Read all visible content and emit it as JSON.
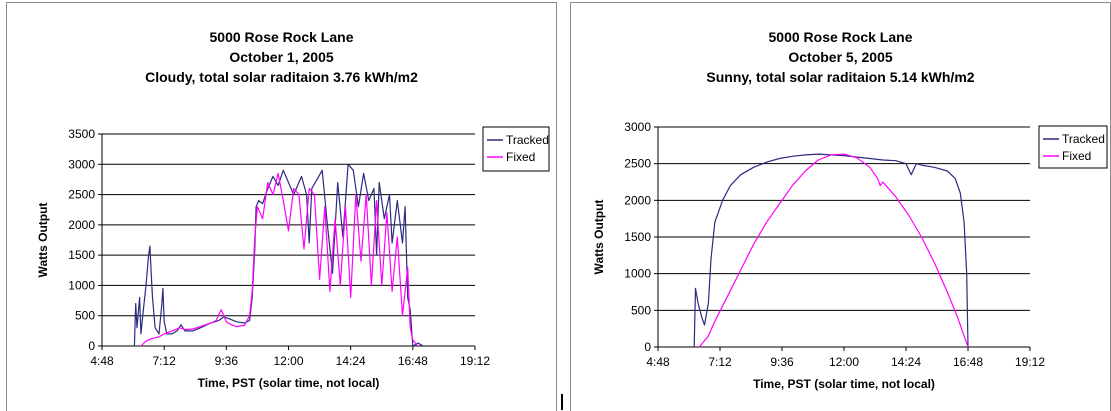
{
  "chart_data": [
    {
      "type": "line",
      "title_lines": [
        "5000 Rose Rock Lane",
        "October 1, 2005",
        "Cloudy, total solar raditaion 3.76 kWh/m2"
      ],
      "xlabel": "Time, PST (solar time, not local)",
      "ylabel": "Watts Output",
      "x_ticks": [
        "4:48",
        "7:12",
        "9:36",
        "12:00",
        "14:24",
        "16:48",
        "19:12"
      ],
      "xlim_hours": [
        4.8,
        19.2
      ],
      "y_ticks": [
        0,
        500,
        1000,
        1500,
        2000,
        2500,
        3000,
        3500
      ],
      "ylim": [
        0,
        3500
      ],
      "grid": true,
      "legend_position": "right",
      "series": [
        {
          "name": "Tracked",
          "color": "#2b2b80",
          "points": [
            [
              6.05,
              0
            ],
            [
              6.1,
              700
            ],
            [
              6.15,
              300
            ],
            [
              6.25,
              800
            ],
            [
              6.3,
              200
            ],
            [
              6.4,
              600
            ],
            [
              6.5,
              1000
            ],
            [
              6.6,
              1500
            ],
            [
              6.65,
              1650
            ],
            [
              6.7,
              1200
            ],
            [
              6.75,
              800
            ],
            [
              6.85,
              300
            ],
            [
              7.0,
              200
            ],
            [
              7.1,
              650
            ],
            [
              7.15,
              950
            ],
            [
              7.2,
              400
            ],
            [
              7.3,
              200
            ],
            [
              7.5,
              200
            ],
            [
              7.7,
              250
            ],
            [
              7.85,
              350
            ],
            [
              8.0,
              250
            ],
            [
              8.3,
              250
            ],
            [
              8.6,
              300
            ],
            [
              9.0,
              380
            ],
            [
              9.3,
              420
            ],
            [
              9.5,
              480
            ],
            [
              9.7,
              450
            ],
            [
              10.0,
              400
            ],
            [
              10.3,
              380
            ],
            [
              10.5,
              420
            ],
            [
              10.6,
              800
            ],
            [
              10.7,
              1600
            ],
            [
              10.75,
              2300
            ],
            [
              10.85,
              2400
            ],
            [
              11.0,
              2350
            ],
            [
              11.2,
              2600
            ],
            [
              11.4,
              2800
            ],
            [
              11.6,
              2650
            ],
            [
              11.8,
              2900
            ],
            [
              12.0,
              2700
            ],
            [
              12.2,
              2500
            ],
            [
              12.5,
              2800
            ],
            [
              12.7,
              2500
            ],
            [
              12.8,
              1700
            ],
            [
              12.9,
              2600
            ],
            [
              13.1,
              2750
            ],
            [
              13.3,
              2900
            ],
            [
              13.5,
              2000
            ],
            [
              13.7,
              1200
            ],
            [
              13.9,
              2700
            ],
            [
              14.1,
              1800
            ],
            [
              14.3,
              3000
            ],
            [
              14.5,
              2900
            ],
            [
              14.7,
              2300
            ],
            [
              14.9,
              2850
            ],
            [
              15.1,
              2400
            ],
            [
              15.3,
              2600
            ],
            [
              15.4,
              1500
            ],
            [
              15.5,
              2700
            ],
            [
              15.7,
              2100
            ],
            [
              15.9,
              2500
            ],
            [
              16.0,
              1700
            ],
            [
              16.2,
              2400
            ],
            [
              16.4,
              1700
            ],
            [
              16.5,
              2300
            ],
            [
              16.6,
              800
            ],
            [
              16.7,
              600
            ],
            [
              16.8,
              0
            ],
            [
              17.0,
              50
            ],
            [
              17.2,
              0
            ]
          ]
        },
        {
          "name": "Fixed",
          "color": "#ff00ff",
          "points": [
            [
              6.3,
              0
            ],
            [
              6.5,
              80
            ],
            [
              6.7,
              120
            ],
            [
              7.0,
              150
            ],
            [
              7.2,
              200
            ],
            [
              7.5,
              250
            ],
            [
              7.8,
              300
            ],
            [
              8.0,
              270
            ],
            [
              8.3,
              280
            ],
            [
              8.6,
              320
            ],
            [
              9.0,
              380
            ],
            [
              9.2,
              420
            ],
            [
              9.4,
              600
            ],
            [
              9.6,
              400
            ],
            [
              9.8,
              350
            ],
            [
              10.0,
              320
            ],
            [
              10.3,
              340
            ],
            [
              10.5,
              500
            ],
            [
              10.6,
              900
            ],
            [
              10.7,
              1800
            ],
            [
              10.8,
              2300
            ],
            [
              11.0,
              2100
            ],
            [
              11.2,
              2700
            ],
            [
              11.4,
              2500
            ],
            [
              11.6,
              2850
            ],
            [
              11.8,
              2400
            ],
            [
              12.0,
              1900
            ],
            [
              12.2,
              2600
            ],
            [
              12.4,
              2500
            ],
            [
              12.6,
              1600
            ],
            [
              12.8,
              2600
            ],
            [
              13.0,
              2500
            ],
            [
              13.2,
              1100
            ],
            [
              13.4,
              2300
            ],
            [
              13.6,
              900
            ],
            [
              13.8,
              2100
            ],
            [
              14.0,
              1000
            ],
            [
              14.2,
              2300
            ],
            [
              14.4,
              800
            ],
            [
              14.6,
              2500
            ],
            [
              14.8,
              1400
            ],
            [
              15.0,
              2500
            ],
            [
              15.2,
              1000
            ],
            [
              15.4,
              2400
            ],
            [
              15.6,
              1000
            ],
            [
              15.8,
              2200
            ],
            [
              16.0,
              900
            ],
            [
              16.2,
              1800
            ],
            [
              16.4,
              500
            ],
            [
              16.6,
              1300
            ],
            [
              16.7,
              300
            ],
            [
              16.8,
              100
            ],
            [
              17.0,
              0
            ]
          ]
        }
      ]
    },
    {
      "type": "line",
      "title_lines": [
        "5000 Rose Rock Lane",
        "October 5, 2005",
        "Sunny, total solar raditaion 5.14 kWh/m2"
      ],
      "xlabel": "Time, PST (solar time, not local)",
      "ylabel": "Watts Output",
      "x_ticks": [
        "4:48",
        "7:12",
        "9:36",
        "12:00",
        "14:24",
        "16:48",
        "19:12"
      ],
      "xlim_hours": [
        4.8,
        19.2
      ],
      "y_ticks": [
        0,
        500,
        1000,
        1500,
        2000,
        2500,
        3000
      ],
      "ylim": [
        0,
        3000
      ],
      "grid": true,
      "legend_position": "right",
      "series": [
        {
          "name": "Tracked",
          "color": "#2b2b80",
          "points": [
            [
              6.2,
              0
            ],
            [
              6.25,
              800
            ],
            [
              6.35,
              600
            ],
            [
              6.5,
              400
            ],
            [
              6.6,
              300
            ],
            [
              6.75,
              600
            ],
            [
              6.85,
              1200
            ],
            [
              7.0,
              1700
            ],
            [
              7.3,
              2000
            ],
            [
              7.6,
              2200
            ],
            [
              8.0,
              2350
            ],
            [
              8.5,
              2450
            ],
            [
              9.0,
              2520
            ],
            [
              9.5,
              2570
            ],
            [
              10.0,
              2600
            ],
            [
              10.5,
              2620
            ],
            [
              11.0,
              2630
            ],
            [
              11.5,
              2620
            ],
            [
              12.0,
              2610
            ],
            [
              12.5,
              2590
            ],
            [
              13.0,
              2570
            ],
            [
              13.5,
              2550
            ],
            [
              14.0,
              2540
            ],
            [
              14.4,
              2500
            ],
            [
              14.6,
              2350
            ],
            [
              14.8,
              2500
            ],
            [
              15.0,
              2480
            ],
            [
              15.5,
              2450
            ],
            [
              16.0,
              2400
            ],
            [
              16.3,
              2300
            ],
            [
              16.5,
              2100
            ],
            [
              16.65,
              1700
            ],
            [
              16.75,
              1000
            ],
            [
              16.8,
              0
            ]
          ]
        },
        {
          "name": "Fixed",
          "color": "#ff00ff",
          "points": [
            [
              6.4,
              0
            ],
            [
              6.75,
              150
            ],
            [
              7.0,
              350
            ],
            [
              7.5,
              700
            ],
            [
              8.0,
              1050
            ],
            [
              8.5,
              1400
            ],
            [
              9.0,
              1700
            ],
            [
              9.5,
              1950
            ],
            [
              10.0,
              2200
            ],
            [
              10.5,
              2400
            ],
            [
              11.0,
              2550
            ],
            [
              11.5,
              2620
            ],
            [
              12.0,
              2630
            ],
            [
              12.5,
              2580
            ],
            [
              13.0,
              2450
            ],
            [
              13.3,
              2300
            ],
            [
              13.4,
              2200
            ],
            [
              13.5,
              2250
            ],
            [
              14.0,
              2050
            ],
            [
              14.5,
              1800
            ],
            [
              15.0,
              1500
            ],
            [
              15.5,
              1150
            ],
            [
              16.0,
              750
            ],
            [
              16.4,
              400
            ],
            [
              16.6,
              200
            ],
            [
              16.8,
              0
            ]
          ]
        }
      ]
    }
  ]
}
